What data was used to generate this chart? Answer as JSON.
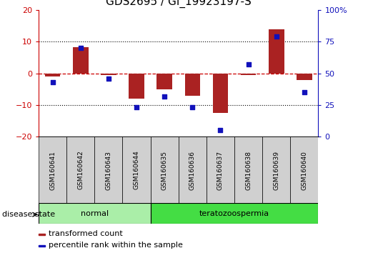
{
  "title": "GDS2695 / GI_19923197-S",
  "samples": [
    "GSM160641",
    "GSM160642",
    "GSM160643",
    "GSM160644",
    "GSM160635",
    "GSM160636",
    "GSM160637",
    "GSM160638",
    "GSM160639",
    "GSM160640"
  ],
  "red_values": [
    -1.0,
    8.2,
    -0.5,
    -8.0,
    -5.0,
    -7.0,
    -12.5,
    -0.5,
    14.0,
    -2.0
  ],
  "blue_values": [
    43,
    70,
    46,
    23,
    32,
    23,
    5,
    57,
    79,
    35
  ],
  "ylim_left": [
    -20,
    20
  ],
  "ylim_right": [
    0,
    100
  ],
  "yticks_left": [
    -20,
    -10,
    0,
    10,
    20
  ],
  "yticks_right": [
    0,
    25,
    50,
    75,
    100
  ],
  "bar_color": "#aa2222",
  "dot_color": "#1111bb",
  "hline_color": "#cc0000",
  "grid_color": "#000000",
  "groups": [
    {
      "label": "normal",
      "start": 0,
      "end": 4,
      "color": "#aaeea8"
    },
    {
      "label": "teratozoospermia",
      "start": 4,
      "end": 10,
      "color": "#44dd44"
    }
  ],
  "group_label": "disease state",
  "legend": [
    "transformed count",
    "percentile rank within the sample"
  ],
  "bar_width": 0.55,
  "title_fontsize": 11,
  "tick_fontsize": 8,
  "sample_fontsize": 6.5,
  "label_fontsize": 8.5
}
